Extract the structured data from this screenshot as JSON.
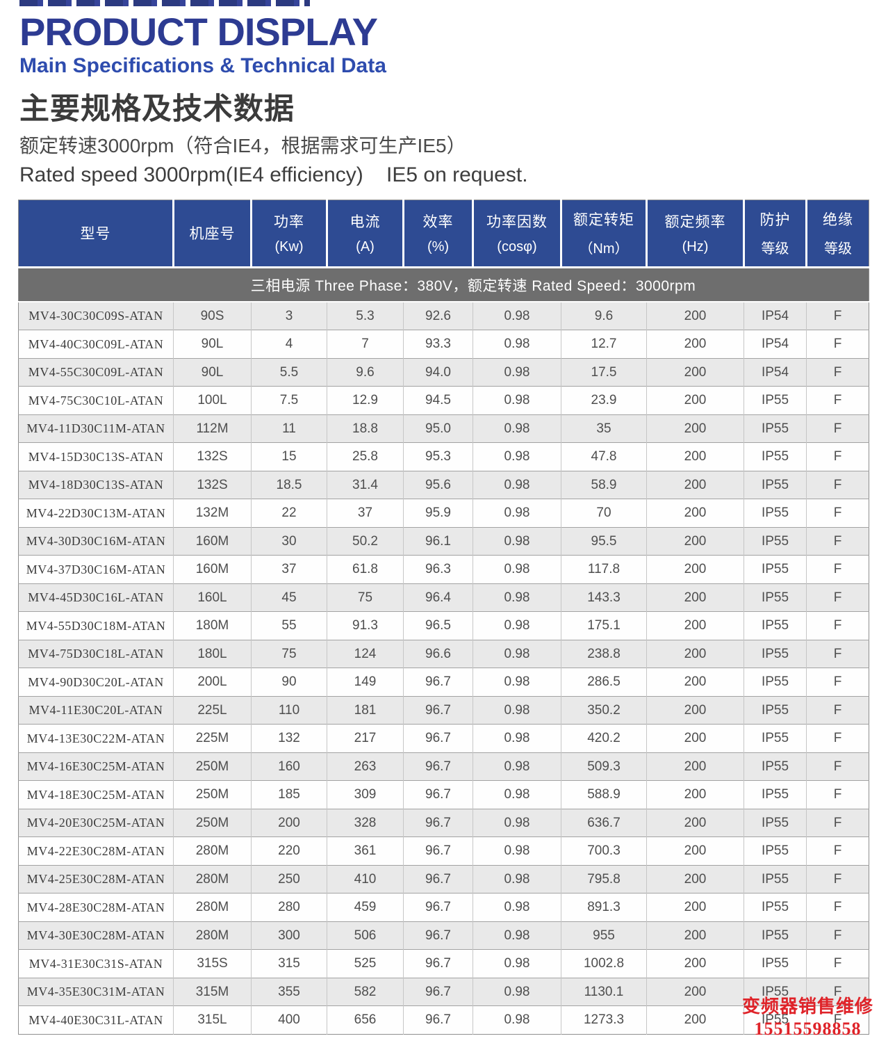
{
  "header": {
    "title": "PRODUCT DISPLAY",
    "subtitle": "Main Specifications & Technical Data",
    "heading_cn": "主要规格及技术数据",
    "note_cn": "额定转速3000rpm（符合IE4，根据需求可生产IE5）",
    "note_en": "Rated speed 3000rpm(IE4 efficiency)    IE5 on request."
  },
  "table": {
    "columns": [
      {
        "title": "型号",
        "sub": ""
      },
      {
        "title": "机座号",
        "sub": ""
      },
      {
        "title": "功率",
        "sub": "(Kw)"
      },
      {
        "title": "电流",
        "sub": "(A)"
      },
      {
        "title": "效率",
        "sub": "(%)"
      },
      {
        "title": "功率因数",
        "sub": "(cosφ)"
      },
      {
        "title": "额定转矩",
        "sub": "（Nm）"
      },
      {
        "title": "额定频率",
        "sub": "(Hz)"
      },
      {
        "title": "防护",
        "sub": "等级"
      },
      {
        "title": "绝缘",
        "sub": "等级"
      }
    ],
    "banner": "三相电源  Three Phase：380V，额定转速 Rated Speed：3000rpm",
    "rows": [
      [
        "MV4-30C30C09S-ATAN",
        "90S",
        "3",
        "5.3",
        "92.6",
        "0.98",
        "9.6",
        "200",
        "IP54",
        "F"
      ],
      [
        "MV4-40C30C09L-ATAN",
        "90L",
        "4",
        "7",
        "93.3",
        "0.98",
        "12.7",
        "200",
        "IP54",
        "F"
      ],
      [
        "MV4-55C30C09L-ATAN",
        "90L",
        "5.5",
        "9.6",
        "94.0",
        "0.98",
        "17.5",
        "200",
        "IP54",
        "F"
      ],
      [
        "MV4-75C30C10L-ATAN",
        "100L",
        "7.5",
        "12.9",
        "94.5",
        "0.98",
        "23.9",
        "200",
        "IP55",
        "F"
      ],
      [
        "MV4-11D30C11M-ATAN",
        "112M",
        "11",
        "18.8",
        "95.0",
        "0.98",
        "35",
        "200",
        "IP55",
        "F"
      ],
      [
        "MV4-15D30C13S-ATAN",
        "132S",
        "15",
        "25.8",
        "95.3",
        "0.98",
        "47.8",
        "200",
        "IP55",
        "F"
      ],
      [
        "MV4-18D30C13S-ATAN",
        "132S",
        "18.5",
        "31.4",
        "95.6",
        "0.98",
        "58.9",
        "200",
        "IP55",
        "F"
      ],
      [
        "MV4-22D30C13M-ATAN",
        "132M",
        "22",
        "37",
        "95.9",
        "0.98",
        "70",
        "200",
        "IP55",
        "F"
      ],
      [
        "MV4-30D30C16M-ATAN",
        "160M",
        "30",
        "50.2",
        "96.1",
        "0.98",
        "95.5",
        "200",
        "IP55",
        "F"
      ],
      [
        "MV4-37D30C16M-ATAN",
        "160M",
        "37",
        "61.8",
        "96.3",
        "0.98",
        "117.8",
        "200",
        "IP55",
        "F"
      ],
      [
        "MV4-45D30C16L-ATAN",
        "160L",
        "45",
        "75",
        "96.4",
        "0.98",
        "143.3",
        "200",
        "IP55",
        "F"
      ],
      [
        "MV4-55D30C18M-ATAN",
        "180M",
        "55",
        "91.3",
        "96.5",
        "0.98",
        "175.1",
        "200",
        "IP55",
        "F"
      ],
      [
        "MV4-75D30C18L-ATAN",
        "180L",
        "75",
        "124",
        "96.6",
        "0.98",
        "238.8",
        "200",
        "IP55",
        "F"
      ],
      [
        "MV4-90D30C20L-ATAN",
        "200L",
        "90",
        "149",
        "96.7",
        "0.98",
        "286.5",
        "200",
        "IP55",
        "F"
      ],
      [
        "MV4-11E30C20L-ATAN",
        "225L",
        "110",
        "181",
        "96.7",
        "0.98",
        "350.2",
        "200",
        "IP55",
        "F"
      ],
      [
        "MV4-13E30C22M-ATAN",
        "225M",
        "132",
        "217",
        "96.7",
        "0.98",
        "420.2",
        "200",
        "IP55",
        "F"
      ],
      [
        "MV4-16E30C25M-ATAN",
        "250M",
        "160",
        "263",
        "96.7",
        "0.98",
        "509.3",
        "200",
        "IP55",
        "F"
      ],
      [
        "MV4-18E30C25M-ATAN",
        "250M",
        "185",
        "309",
        "96.7",
        "0.98",
        "588.9",
        "200",
        "IP55",
        "F"
      ],
      [
        "MV4-20E30C25M-ATAN",
        "250M",
        "200",
        "328",
        "96.7",
        "0.98",
        "636.7",
        "200",
        "IP55",
        "F"
      ],
      [
        "MV4-22E30C28M-ATAN",
        "280M",
        "220",
        "361",
        "96.7",
        "0.98",
        "700.3",
        "200",
        "IP55",
        "F"
      ],
      [
        "MV4-25E30C28M-ATAN",
        "280M",
        "250",
        "410",
        "96.7",
        "0.98",
        "795.8",
        "200",
        "IP55",
        "F"
      ],
      [
        "MV4-28E30C28M-ATAN",
        "280M",
        "280",
        "459",
        "96.7",
        "0.98",
        "891.3",
        "200",
        "IP55",
        "F"
      ],
      [
        "MV4-30E30C28M-ATAN",
        "280M",
        "300",
        "506",
        "96.7",
        "0.98",
        "955",
        "200",
        "IP55",
        "F"
      ],
      [
        "MV4-31E30C31S-ATAN",
        "315S",
        "315",
        "525",
        "96.7",
        "0.98",
        "1002.8",
        "200",
        "IP55",
        "F"
      ],
      [
        "MV4-35E30C31M-ATAN",
        "315M",
        "355",
        "582",
        "96.7",
        "0.98",
        "1130.1",
        "200",
        "IP55",
        "F"
      ],
      [
        "MV4-40E30C31L-ATAN",
        "315L",
        "400",
        "656",
        "96.7",
        "0.98",
        "1273.3",
        "200",
        "IP55",
        "F"
      ]
    ]
  },
  "watermark": {
    "line1": "变频器销售维修",
    "line2": "15515598858",
    "color": "#df2329"
  },
  "colors": {
    "title_blue": "#2d3b92",
    "subtitle_blue": "#2e4cae",
    "header_cell_blue": "#2e4b93",
    "banner_gray": "#6e6e6e",
    "row_alt_gray": "#e9e9e9",
    "watermark_red": "#df2329"
  }
}
